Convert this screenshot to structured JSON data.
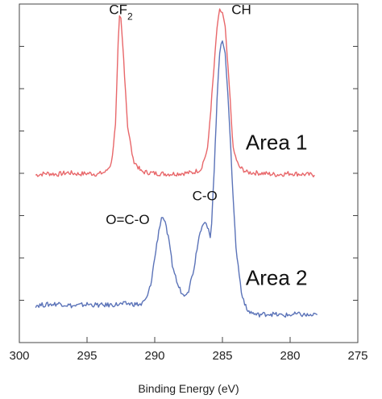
{
  "chart_data": {
    "type": "line",
    "title": "",
    "xlabel": "Binding Energy (eV)",
    "ylabel": "",
    "xlim": [
      300,
      275
    ],
    "x_reversed": true,
    "xticks": [
      300,
      295,
      290,
      285,
      280,
      275
    ],
    "xtick_labels": [
      "300",
      "295",
      "290",
      "285",
      "280",
      "275"
    ],
    "ylim": [
      0,
      1
    ],
    "y_tick_count": 8,
    "y_tick_labels": false,
    "grid": false,
    "series": [
      {
        "name": "Area 1",
        "color": "#e8676a",
        "points": [
          [
            298.8,
            0.495
          ],
          [
            298.0,
            0.5
          ],
          [
            297.2,
            0.497
          ],
          [
            296.4,
            0.502
          ],
          [
            295.6,
            0.498
          ],
          [
            294.8,
            0.5
          ],
          [
            294.2,
            0.497
          ],
          [
            293.6,
            0.505
          ],
          [
            293.2,
            0.53
          ],
          [
            292.9,
            0.64
          ],
          [
            292.7,
            0.88
          ],
          [
            292.6,
            0.96
          ],
          [
            292.5,
            0.955
          ],
          [
            292.3,
            0.84
          ],
          [
            292.0,
            0.64
          ],
          [
            291.6,
            0.54
          ],
          [
            291.0,
            0.505
          ],
          [
            290.0,
            0.5
          ],
          [
            289.0,
            0.498
          ],
          [
            288.0,
            0.5
          ],
          [
            287.2,
            0.502
          ],
          [
            286.6,
            0.512
          ],
          [
            286.1,
            0.57
          ],
          [
            285.7,
            0.77
          ],
          [
            285.4,
            0.93
          ],
          [
            285.2,
            0.98
          ],
          [
            285.0,
            0.975
          ],
          [
            284.8,
            0.93
          ],
          [
            284.5,
            0.76
          ],
          [
            284.2,
            0.57
          ],
          [
            283.8,
            0.52
          ],
          [
            283.2,
            0.503
          ],
          [
            282.0,
            0.5
          ],
          [
            281.0,
            0.496
          ],
          [
            280.0,
            0.5
          ],
          [
            279.0,
            0.497
          ],
          [
            278.2,
            0.495
          ]
        ]
      },
      {
        "name": "Area 2",
        "color": "#5b73b8",
        "points": [
          [
            298.8,
            0.11
          ],
          [
            298.0,
            0.112
          ],
          [
            297.0,
            0.115
          ],
          [
            296.0,
            0.108
          ],
          [
            295.0,
            0.113
          ],
          [
            294.0,
            0.11
          ],
          [
            293.0,
            0.112
          ],
          [
            292.0,
            0.115
          ],
          [
            291.0,
            0.112
          ],
          [
            290.6,
            0.13
          ],
          [
            290.3,
            0.17
          ],
          [
            290.0,
            0.25
          ],
          [
            289.7,
            0.33
          ],
          [
            289.5,
            0.37
          ],
          [
            289.3,
            0.365
          ],
          [
            289.0,
            0.31
          ],
          [
            288.7,
            0.23
          ],
          [
            288.3,
            0.17
          ],
          [
            287.9,
            0.14
          ],
          [
            287.5,
            0.155
          ],
          [
            287.1,
            0.22
          ],
          [
            286.8,
            0.3
          ],
          [
            286.5,
            0.35
          ],
          [
            286.3,
            0.36
          ],
          [
            286.1,
            0.34
          ],
          [
            285.9,
            0.31
          ],
          [
            285.8,
            0.345
          ],
          [
            285.6,
            0.52
          ],
          [
            285.4,
            0.72
          ],
          [
            285.2,
            0.86
          ],
          [
            285.0,
            0.89
          ],
          [
            284.8,
            0.86
          ],
          [
            284.6,
            0.74
          ],
          [
            284.3,
            0.5
          ],
          [
            284.0,
            0.28
          ],
          [
            283.6,
            0.15
          ],
          [
            283.2,
            0.095
          ],
          [
            282.5,
            0.082
          ],
          [
            281.5,
            0.085
          ],
          [
            280.5,
            0.08
          ],
          [
            279.5,
            0.084
          ],
          [
            278.5,
            0.08
          ],
          [
            278.0,
            0.082
          ]
        ]
      }
    ],
    "annotations": [
      {
        "text": "CF",
        "subscript": "2",
        "x": 292.5,
        "y": 0.97
      },
      {
        "text": "CH",
        "x": 283.6,
        "y": 0.97
      },
      {
        "text": "C-O",
        "x": 286.3,
        "y": 0.42
      },
      {
        "text": "O=C-O",
        "x": 292.0,
        "y": 0.35
      },
      {
        "text": "Area 1",
        "x": 281.0,
        "y": 0.57
      },
      {
        "text": "Area 2",
        "x": 281.0,
        "y": 0.17
      }
    ]
  }
}
